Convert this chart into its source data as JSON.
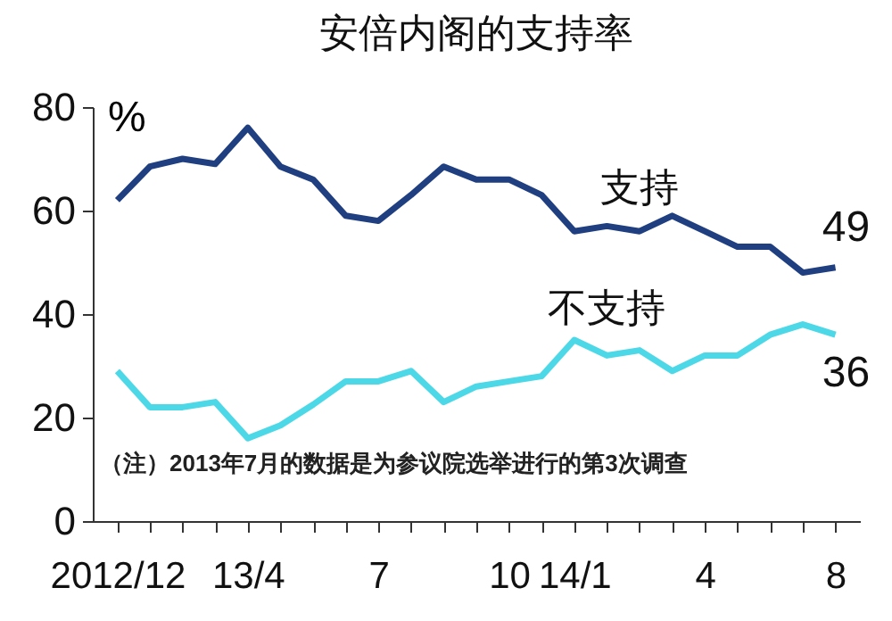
{
  "chart_data": {
    "type": "line",
    "title": "安倍内阁的支持率",
    "ylabel": "%",
    "categories": [
      "2012/12",
      null,
      null,
      null,
      "13/4",
      null,
      null,
      null,
      "7",
      null,
      null,
      null,
      "10",
      null,
      "14/1",
      null,
      null,
      null,
      "4",
      null,
      null,
      null,
      "8"
    ],
    "series": [
      {
        "name": "支持",
        "color": "#1f3f80",
        "values": [
          62,
          68.5,
          70,
          69,
          76,
          68.5,
          66,
          59,
          58,
          63,
          68.5,
          66,
          66,
          63,
          56,
          57,
          56,
          59,
          56,
          53,
          53,
          48,
          49
        ],
        "value_labels": [
          null,
          null,
          null,
          null,
          null,
          null,
          null,
          null,
          null,
          null,
          null,
          null,
          null,
          null,
          null,
          null,
          null,
          null,
          null,
          null,
          null,
          null,
          "49"
        ]
      },
      {
        "name": "不支持",
        "color": "#4dd8e8",
        "values": [
          29,
          22,
          22,
          23,
          16,
          18.5,
          22.5,
          27,
          27,
          29,
          23,
          26,
          27,
          28,
          35,
          32,
          33,
          29,
          32,
          32,
          36,
          38,
          36
        ],
        "value_labels": [
          null,
          null,
          null,
          null,
          null,
          null,
          null,
          null,
          null,
          null,
          null,
          null,
          null,
          null,
          null,
          null,
          null,
          null,
          null,
          null,
          null,
          null,
          "36"
        ]
      }
    ],
    "ylim": [
      0,
      80
    ],
    "yticks": [
      0,
      20,
      40,
      60,
      80
    ],
    "grid": false,
    "line_style": "solid",
    "annotations": [
      "（注）2013年7月的数据是为参议院选举进行的第3次调查"
    ]
  }
}
